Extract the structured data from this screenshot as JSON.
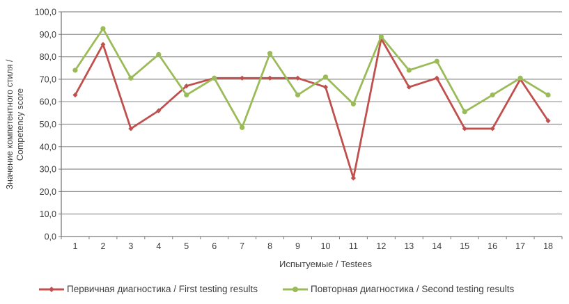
{
  "chart_data": {
    "type": "line",
    "title": "",
    "categories": [
      "1",
      "2",
      "3",
      "4",
      "5",
      "6",
      "7",
      "8",
      "9",
      "10",
      "11",
      "12",
      "13",
      "14",
      "15",
      "16",
      "17",
      "18"
    ],
    "series": [
      {
        "name": "Первичная диагностика / First testing results",
        "color": "#C0504D",
        "marker": "diamond",
        "values": [
          63,
          85.5,
          48,
          56,
          67,
          70.5,
          70.5,
          70.5,
          70.5,
          66.5,
          26,
          88,
          66.5,
          70.5,
          48,
          48,
          70,
          51.5
        ]
      },
      {
        "name": "Повторная диагностика / Second testing results",
        "color": "#9BBB59",
        "marker": "circle",
        "values": [
          74,
          92.5,
          70.5,
          81,
          63,
          70.5,
          48.5,
          81.5,
          63,
          71,
          59,
          89,
          74,
          78,
          55.5,
          63,
          70.5,
          63
        ]
      }
    ],
    "xlabel": "Испытуемые / Testees",
    "ylabel_lines": [
      "Значение компетентного стиля /",
      "Competency score"
    ],
    "ylim": [
      0,
      100
    ],
    "ytick_step": 10,
    "yticks": [
      {
        "value": 0,
        "label": "0,0"
      },
      {
        "value": 10,
        "label": "10,0"
      },
      {
        "value": 20,
        "label": "20,0"
      },
      {
        "value": 30,
        "label": "30,0"
      },
      {
        "value": 40,
        "label": "40,0"
      },
      {
        "value": 50,
        "label": "50,0"
      },
      {
        "value": 60,
        "label": "60,0"
      },
      {
        "value": 70,
        "label": "70,0"
      },
      {
        "value": 80,
        "label": "80,0"
      },
      {
        "value": 90,
        "label": "90,0"
      },
      {
        "value": 100,
        "label": "100,0"
      }
    ],
    "grid": "horizontal",
    "legend_position": "bottom"
  },
  "colors": {
    "background": "#ffffff",
    "gridline": "#8f8f8f",
    "axis": "#7a7a7a",
    "text": "#3d3d3d"
  }
}
